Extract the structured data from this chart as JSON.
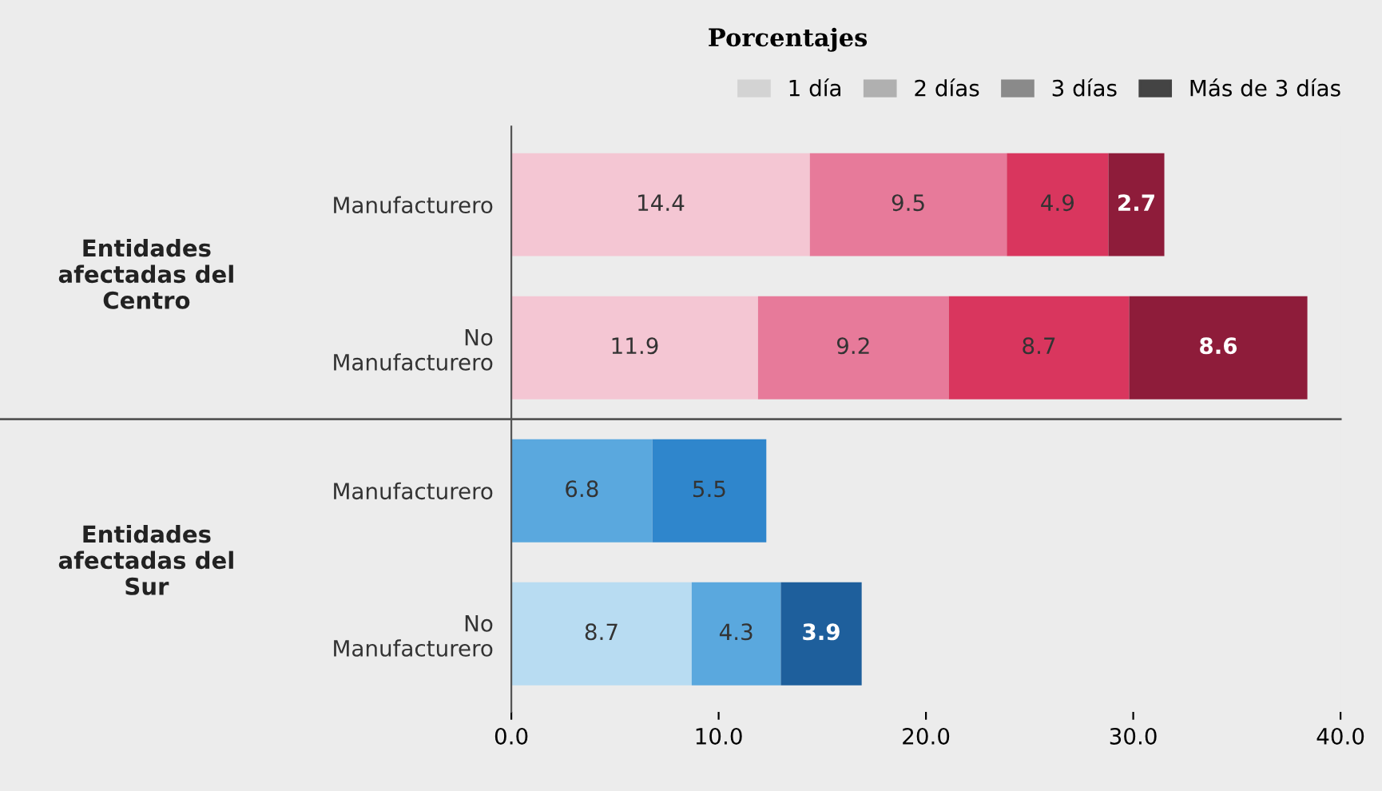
{
  "chart_data": {
    "type": "bar",
    "orientation": "horizontal",
    "stacked": true,
    "title": "Porcentajes",
    "categories": [
      "Manufacturero",
      "No\nManufacturero",
      "Manufacturero",
      "No\nManufacturero"
    ],
    "series": [
      {
        "name": "1 día",
        "color": "#d3d3d3",
        "values": [
          14.4,
          11.9,
          null,
          8.7
        ],
        "colors": [
          "#f4c6d3",
          "#f4c6d3",
          "#b8dcf2",
          "#b8dcf2"
        ]
      },
      {
        "name": "2 días",
        "color": "#b0b0b0",
        "values": [
          9.5,
          9.2,
          6.8,
          4.3
        ],
        "colors": [
          "#e77a9a",
          "#e77a9a",
          "#5aa8de",
          "#5aa8de"
        ]
      },
      {
        "name": "3 días",
        "color": "#8a8a8a",
        "values": [
          4.9,
          8.7,
          5.5,
          3.9
        ],
        "colors": [
          "#d9365e",
          "#d9365e",
          "#2f86cc",
          "#1e5f9c"
        ]
      },
      {
        "name": "Más de 3 días",
        "color": "#444444",
        "values": [
          2.7,
          8.6,
          null,
          null
        ],
        "colors": [
          "#8e1c3a",
          "#8e1c3a",
          "#1e5f9c",
          "#1e5f9c"
        ]
      }
    ],
    "xlim": [
      0,
      40
    ],
    "xticks": [
      {
        "value": 0,
        "label": "0.0"
      },
      {
        "value": 10,
        "label": "10.0"
      },
      {
        "value": 20,
        "label": "20.0"
      },
      {
        "value": 30,
        "label": "30.0"
      },
      {
        "value": 40,
        "label": "40.0"
      }
    ],
    "annotations": [
      "Entidades\nafectadas del\nCentro",
      "Entidades\nafectadas del\nSur"
    ],
    "data_labels": true,
    "legend": "top right",
    "grid": false
  }
}
